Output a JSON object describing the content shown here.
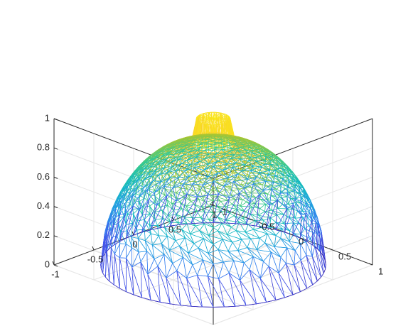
{
  "chart_data": {
    "type": "surface-mesh-3d",
    "title": "",
    "xlabel": "",
    "ylabel": "",
    "zlabel": "",
    "colormap": "parula",
    "x_range": [
      -1,
      1
    ],
    "y_range": [
      -1,
      1
    ],
    "z_range": [
      0,
      1
    ],
    "grid": true,
    "x_ticks": [
      {
        "value": -1,
        "label": "-1"
      },
      {
        "value": -0.5,
        "label": "-0.5"
      },
      {
        "value": 0,
        "label": "0"
      },
      {
        "value": 0.5,
        "label": "0.5"
      },
      {
        "value": 1,
        "label": "1"
      }
    ],
    "y_ticks": [
      {
        "value": -1,
        "label": "-1"
      },
      {
        "value": -0.5,
        "label": "-0.5"
      },
      {
        "value": 0,
        "label": "0"
      },
      {
        "value": 0.5,
        "label": "0.5"
      },
      {
        "value": 1,
        "label": "1"
      }
    ],
    "z_ticks": [
      {
        "value": 0,
        "label": "0"
      },
      {
        "value": 0.2,
        "label": "0.2"
      },
      {
        "value": 0.4,
        "label": "0.4"
      },
      {
        "value": 0.6,
        "label": "0.6"
      },
      {
        "value": 0.8,
        "label": "0.8"
      },
      {
        "value": 1,
        "label": "1"
      }
    ],
    "surface": {
      "shape": "dome over unit disk with a raised cylindrical cap",
      "domain_radius": 1,
      "cap_radius": 0.15,
      "cap_height": 1,
      "dome_peak_height": 0.82,
      "rim_height": 0
    }
  }
}
